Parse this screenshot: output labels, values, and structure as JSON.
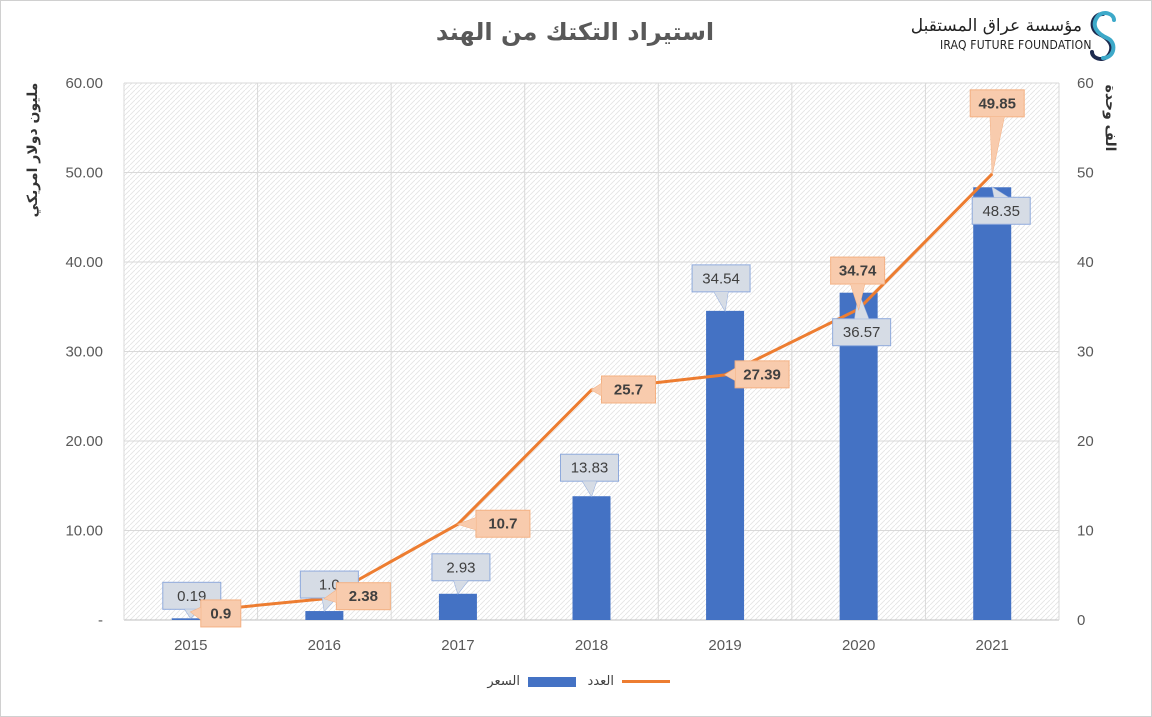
{
  "title": "استيراد التكتك من الهند",
  "logo": {
    "arabic_name": "مؤسسة عراق المستقبل",
    "english_name": "IRAQ FUTURE FOUNDATION"
  },
  "colors": {
    "bar": "#4472c4",
    "line": "#ed7d31",
    "bar_label_fill": "#d6dce5",
    "line_label_fill": "#f8cbad",
    "grid": "#d9d9d9"
  },
  "chart_data": {
    "type": "bar+line",
    "categories": [
      "2015",
      "2016",
      "2017",
      "2018",
      "2019",
      "2020",
      "2021"
    ],
    "series": [
      {
        "name": "السعر",
        "type": "bar",
        "axis": "left",
        "values": [
          0.19,
          1.0,
          2.93,
          13.83,
          34.54,
          36.57,
          48.35
        ],
        "labels": [
          "0.19",
          "1.0",
          "2.93",
          "13.83",
          "34.54",
          "36.57",
          "48.35"
        ]
      },
      {
        "name": "العدد",
        "type": "line",
        "axis": "right",
        "values": [
          0.9,
          2.38,
          10.7,
          25.7,
          27.39,
          34.74,
          49.85
        ],
        "labels": [
          "0.9",
          "2.38",
          "10.7",
          "25.7",
          "27.39",
          "34.74",
          "49.85"
        ]
      }
    ],
    "y_left": {
      "label": "مليون دولار امريكي",
      "range": [
        0,
        60
      ],
      "ticks": [
        "-",
        "10.00",
        "20.00",
        "30.00",
        "40.00",
        "50.00",
        "60.00"
      ]
    },
    "y_right": {
      "label": "الف وحدة",
      "range": [
        0,
        60
      ],
      "ticks": [
        "0",
        "10",
        "20",
        "30",
        "40",
        "50",
        "60"
      ]
    },
    "grid": true,
    "legend_position": "bottom"
  }
}
